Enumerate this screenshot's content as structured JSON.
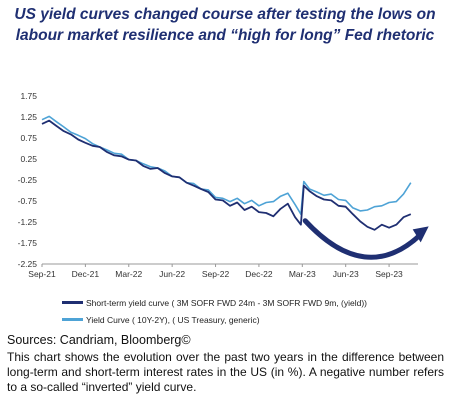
{
  "title": "US yield curves changed course after testing the lows on labour market resilience and “high for long” Fed rhetoric",
  "sources": "Sources: Candriam, Bloomberg©",
  "caption": "This chart shows the evolution over the past two years in the difference between long-term and short-term interest rates in the US (in %). A negative number refers to a so-called “inverted” yield curve.",
  "colors": {
    "short_term": "#1f2f72",
    "yield_curve": "#4ea3d6",
    "arrow": "#1f2f72",
    "grid": "#e6e6e6"
  },
  "chart_data": {
    "type": "line",
    "title": "US yield curves changed course after testing the lows on labour market resilience and “high for long” Fed rhetoric",
    "xlabel": "",
    "ylabel": "",
    "x_ticks": [
      "Sep-21",
      "Dec-21",
      "Mar-22",
      "Jun-22",
      "Sep-22",
      "Dec-22",
      "Mar-23",
      "Jun-23",
      "Sep-23"
    ],
    "y_ticks": [
      1.75,
      1.25,
      0.75,
      0.25,
      -0.25,
      -0.75,
      -1.25,
      -1.75,
      -2.25
    ],
    "ylim": [
      -2.25,
      1.75
    ],
    "xlim": [
      0,
      26
    ],
    "grid": false,
    "legend": "bottom",
    "annotation": "curved arrow (Mar-23 to Oct-23)",
    "series": [
      {
        "name": "Short-term yield curve ( 3M SOFR FWD 24m - 3M SOFR FWD 9m, (yield))",
        "x": [
          0,
          0.5,
          1,
          1.5,
          2,
          2.5,
          3,
          3.5,
          4,
          4.5,
          5,
          5.5,
          6,
          6.5,
          7,
          7.5,
          8,
          8.5,
          9,
          9.5,
          10,
          10.5,
          11,
          11.5,
          12,
          12.5,
          13,
          13.5,
          14,
          14.5,
          15,
          15.5,
          16,
          16.5,
          17,
          17.5,
          17.9,
          18.1,
          18.5,
          19,
          19.5,
          20,
          20.5,
          21,
          21.5,
          22,
          22.5,
          23,
          23.5,
          24,
          24.5,
          25,
          25.5
        ],
        "y": [
          1.1,
          1.15,
          1.05,
          0.9,
          0.85,
          0.7,
          0.65,
          0.55,
          0.55,
          0.4,
          0.35,
          0.3,
          0.25,
          0.2,
          0.1,
          0.0,
          0.05,
          -0.1,
          -0.15,
          -0.2,
          -0.3,
          -0.4,
          -0.45,
          -0.55,
          -0.7,
          -0.75,
          -0.85,
          -0.8,
          -0.95,
          -0.9,
          -1.0,
          -1.05,
          -1.1,
          -0.95,
          -0.8,
          -1.15,
          -1.3,
          -0.4,
          -0.5,
          -0.65,
          -0.7,
          -0.75,
          -0.85,
          -0.9,
          -1.05,
          -1.25,
          -1.35,
          -1.45,
          -1.3,
          -1.4,
          -1.3,
          -1.15,
          -1.05
        ]
      },
      {
        "name": "Yield Curve ( 10Y-2Y), ( US Treasury, generic)",
        "x": [
          0,
          0.5,
          1,
          1.5,
          2,
          2.5,
          3,
          3.5,
          4,
          4.5,
          5,
          5.5,
          6,
          6.5,
          7,
          7.5,
          8,
          8.5,
          9,
          9.5,
          10,
          10.5,
          11,
          11.5,
          12,
          12.5,
          13,
          13.5,
          14,
          14.5,
          15,
          15.5,
          16,
          16.5,
          17,
          17.5,
          17.9,
          18.1,
          18.5,
          19,
          19.5,
          20,
          20.5,
          21,
          21.5,
          22,
          22.5,
          23,
          23.5,
          24,
          24.5,
          25,
          25.5
        ],
        "y": [
          1.2,
          1.25,
          1.15,
          1.0,
          0.9,
          0.8,
          0.75,
          0.6,
          0.55,
          0.45,
          0.4,
          0.35,
          0.25,
          0.2,
          0.15,
          0.05,
          0.05,
          -0.05,
          -0.15,
          -0.2,
          -0.3,
          -0.35,
          -0.45,
          -0.5,
          -0.65,
          -0.7,
          -0.75,
          -0.7,
          -0.8,
          -0.75,
          -0.85,
          -0.8,
          -0.75,
          -0.65,
          -0.55,
          -0.85,
          -1.05,
          -0.3,
          -0.45,
          -0.55,
          -0.6,
          -0.6,
          -0.7,
          -0.75,
          -0.9,
          -1.0,
          -0.95,
          -0.9,
          -0.85,
          -0.8,
          -0.75,
          -0.6,
          -0.3
        ]
      }
    ]
  }
}
